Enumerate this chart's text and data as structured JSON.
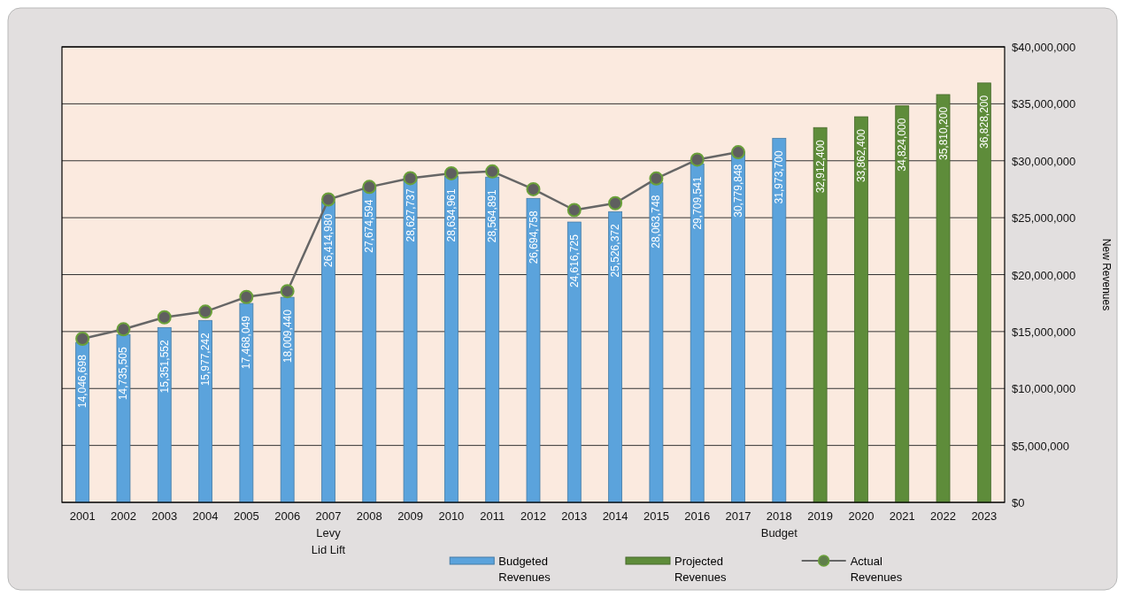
{
  "chart_data": {
    "type": "bar",
    "ylabel": "New Revenues",
    "categories": [
      "2001",
      "2002",
      "2003",
      "2004",
      "2005",
      "2006",
      "2007\nLevy\nLid Lift",
      "2008",
      "2009",
      "2010",
      "2011",
      "2012",
      "2013",
      "2014",
      "2015",
      "2016",
      "2017",
      "2018\nBudget",
      "2019",
      "2020",
      "2021",
      "2022",
      "2023"
    ],
    "series": [
      {
        "name": "Budgeted Revenues",
        "color": "#5ba3dc",
        "values": [
          14046698,
          14735505,
          15351552,
          15977242,
          17468049,
          18009440,
          26414980,
          27674594,
          28627737,
          28634961,
          28564891,
          26694758,
          24616725,
          25526372,
          28063748,
          29709541,
          30779848,
          31973700,
          null,
          null,
          null,
          null,
          null
        ],
        "value_labels": [
          "14,046,698",
          "14,735,505",
          "15,351,552",
          "15,977,242",
          "17,468,049",
          "18,009,440",
          "26,414,980",
          "27,674,594",
          "28,627,737",
          "28,634,961",
          "28,564,891",
          "26,694,758",
          "24,616,725",
          "25,526,372",
          "28,063,748",
          "29,709,541",
          "30,779,848",
          "31,973,700",
          null,
          null,
          null,
          null,
          null
        ]
      },
      {
        "name": "Projected Revenues",
        "color": "#5e8c3a",
        "values": [
          null,
          null,
          null,
          null,
          null,
          null,
          null,
          null,
          null,
          null,
          null,
          null,
          null,
          null,
          null,
          null,
          null,
          null,
          32912400,
          33862400,
          34824000,
          35810200,
          36828200
        ],
        "value_labels": [
          null,
          null,
          null,
          null,
          null,
          null,
          null,
          null,
          null,
          null,
          null,
          null,
          null,
          null,
          null,
          null,
          null,
          null,
          "32,912,400",
          "33,862,400",
          "34,824,000",
          "35,810,200",
          "36,828,200"
        ]
      },
      {
        "name": "Actual Revenues",
        "type": "line",
        "color": "#666666",
        "marker": "circle",
        "values": [
          14370000,
          15200000,
          16250000,
          16750000,
          18040000,
          18550000,
          26600000,
          27700000,
          28470000,
          28900000,
          29060000,
          27500000,
          25670000,
          26270000,
          28440000,
          30100000,
          30750000,
          null,
          null,
          null,
          null,
          null,
          null
        ]
      }
    ],
    "ylim": [
      0,
      40000000
    ],
    "yticks": [
      {
        "value": 0,
        "label": "$0"
      },
      {
        "value": 5000000,
        "label": "$5,000,000"
      },
      {
        "value": 10000000,
        "label": "$10,000,000"
      },
      {
        "value": 15000000,
        "label": "$15,000,000"
      },
      {
        "value": 20000000,
        "label": "$20,000,000"
      },
      {
        "value": 25000000,
        "label": "$25,000,000"
      },
      {
        "value": 30000000,
        "label": "$30,000,000"
      },
      {
        "value": 35000000,
        "label": "$35,000,000"
      },
      {
        "value": 40000000,
        "label": "$40,000,000"
      }
    ],
    "grid": "y",
    "legend": "bottom"
  }
}
